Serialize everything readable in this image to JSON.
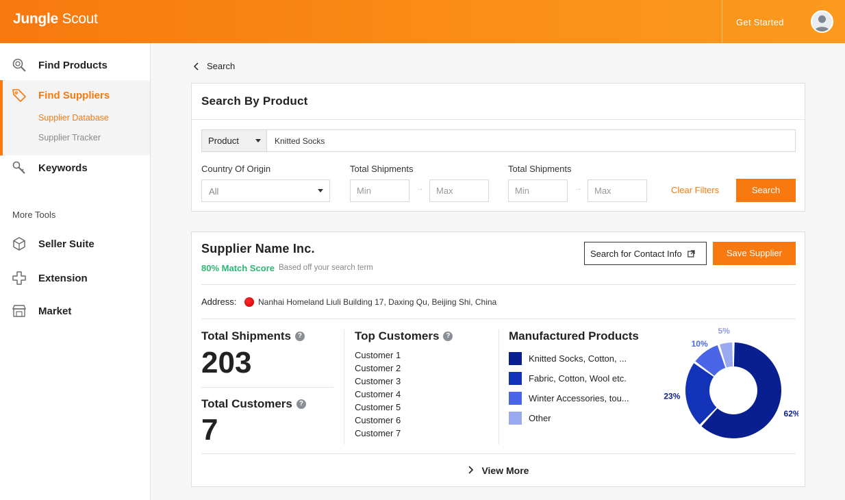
{
  "header": {
    "logo_bold": "Jungle",
    "logo_light": "Scout",
    "get_started": "Get Started"
  },
  "sidebar": {
    "items": [
      {
        "label": "Find Products",
        "icon": "find-products-icon"
      },
      {
        "label": "Find Suppliers",
        "icon": "tag-icon",
        "active": true
      },
      {
        "label": "Keywords",
        "icon": "keywords-icon"
      },
      {
        "label": "Seller Suite",
        "icon": "seller-suite-icon"
      },
      {
        "label": "Extension",
        "icon": "extension-icon"
      },
      {
        "label": "Market",
        "icon": "market-icon"
      }
    ],
    "subitems": [
      {
        "label": "Supplier Database",
        "active": true
      },
      {
        "label": "Supplier Tracker",
        "active": false
      }
    ],
    "more_tools": "More Tools"
  },
  "breadcrumb": "Search",
  "search_panel": {
    "title": "Search By Product",
    "search_type": "Product",
    "search_value": "Knitted Socks",
    "country_label": "Country Of Origin",
    "country_value": "All",
    "shipments_label_1": "Total Shipments",
    "shipments_label_2": "Total Shipments",
    "min_placeholder": "Min",
    "max_placeholder": "Max",
    "clear_filters": "Clear Filters",
    "search_button": "Search"
  },
  "supplier": {
    "name": "Supplier Name Inc.",
    "match_score": "80% Match Score",
    "match_note": "Based off your search term",
    "contact_button": "Search for Contact Info",
    "save_button": "Save Supplier",
    "address_label": "Address:",
    "address": "Nanhai Homeland Liuli Building 17, Daxing Qu, Beijing Shi, China",
    "total_shipments_label": "Total Shipments",
    "total_shipments": "203",
    "total_customers_label": "Total Customers",
    "total_customers": "7",
    "top_customers_label": "Top Customers",
    "customers": [
      "Customer 1",
      "Customer 2",
      "Customer 3",
      "Customer 4",
      "Customer 5",
      "Customer 6",
      "Customer 7"
    ],
    "manufactured_label": "Manufactured Products",
    "view_more": "View More"
  },
  "chart_data": {
    "type": "pie",
    "categories": [
      "Knitted Socks, Cotton, ...",
      "Fabric, Cotton, Wool etc.",
      "Winter Accessories, tou...",
      "Other"
    ],
    "values": [
      62,
      23,
      10,
      5
    ],
    "value_labels": [
      "62%",
      "23%",
      "10%",
      "5%"
    ],
    "colors": [
      "#0a1f8f",
      "#1232b8",
      "#4a66e6",
      "#9aaaf0"
    ]
  }
}
